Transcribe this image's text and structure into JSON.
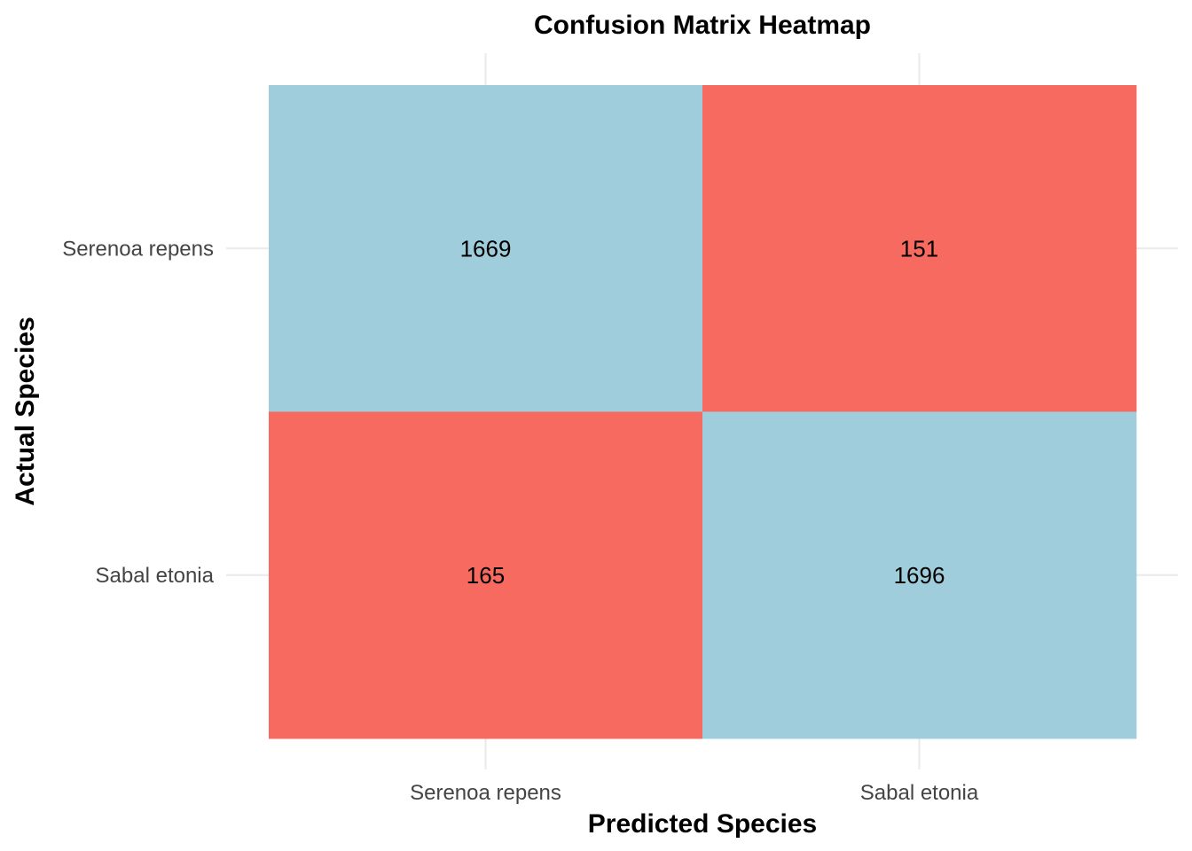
{
  "chart_data": {
    "type": "heatmap",
    "title": "Confusion Matrix Heatmap",
    "xlabel": "Predicted Species",
    "ylabel": "Actual Species",
    "x_categories": [
      "Serenoa repens",
      "Sabal etonia"
    ],
    "y_categories": [
      "Serenoa repens",
      "Sabal etonia"
    ],
    "cells": [
      {
        "actual": "Serenoa repens",
        "predicted": "Serenoa repens",
        "value": 1669,
        "correct": true
      },
      {
        "actual": "Serenoa repens",
        "predicted": "Sabal etonia",
        "value": 151,
        "correct": false
      },
      {
        "actual": "Sabal etonia",
        "predicted": "Serenoa repens",
        "value": 165,
        "correct": false
      },
      {
        "actual": "Sabal etonia",
        "predicted": "Sabal etonia",
        "value": 1696,
        "correct": true
      }
    ],
    "colors": {
      "correct": "#a0cddc",
      "incorrect": "#f66a60",
      "grid": "#ebebeb",
      "background": "#ffffff"
    },
    "grid": true,
    "legend": "none"
  }
}
